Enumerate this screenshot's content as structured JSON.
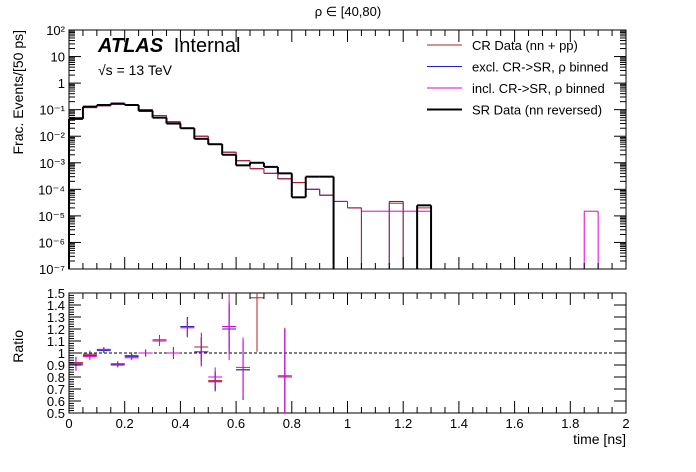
{
  "figure_title": "ρ ∈ [40,80)",
  "atlas": {
    "bold": "ATLAS",
    "label": "Internal",
    "energy": "√s = 13 TeV"
  },
  "colors": {
    "cr": "#b22222",
    "excl": "#1f1fd0",
    "incl": "#e000e0",
    "sr": "#000000"
  },
  "legend": [
    {
      "key": "cr",
      "label": "CR Data (nn + pp)"
    },
    {
      "key": "excl",
      "label": "excl. CR->SR, ρ binned"
    },
    {
      "key": "incl",
      "label": "incl. CR->SR, ρ binned"
    },
    {
      "key": "sr",
      "label": "SR Data (nn reversed)"
    }
  ],
  "chart_data": [
    {
      "type": "histogram",
      "panel": "main",
      "ylabel": "Frac. Events/[50 ps]",
      "yscale": "log",
      "ylim": [
        1e-07,
        100
      ],
      "xlim": [
        0,
        2
      ],
      "bin_width": 0.05,
      "y_tick_labels": [
        "10⁻⁷",
        "10⁻⁶",
        "10⁻⁵",
        "10⁻⁴",
        "10⁻³",
        "10⁻²",
        "10⁻¹",
        "1",
        "10",
        "10²"
      ],
      "series": [
        {
          "name": "CR Data (nn + pp)",
          "key": "cr",
          "values": [
            0.05,
            0.12,
            0.14,
            0.16,
            0.15,
            0.1,
            0.06,
            0.035,
            0.02,
            0.01,
            0.005,
            0.0025,
            0.0012,
            0.0006,
            0.0004,
            0.00025,
            0.00018,
            0.0001,
            6e-05,
            3.5e-05,
            2e-05,
            0,
            0,
            3e-05,
            0,
            2e-05
          ]
        },
        {
          "name": "excl. CR->SR, ρ binned",
          "key": "excl",
          "values": [
            0.05,
            0.12,
            0.14,
            0.16,
            0.15,
            0.1,
            0.06,
            0.035,
            0.02,
            0.01,
            0.005,
            0.0025,
            0.0012,
            0.0006,
            0.0004,
            0.00025,
            0.00018,
            0.0001,
            6e-05,
            3.5e-05,
            2e-05,
            0,
            0,
            3.5e-05,
            0,
            2.5e-05
          ]
        },
        {
          "name": "incl. CR->SR, ρ binned",
          "key": "incl",
          "values": [
            0.05,
            0.12,
            0.14,
            0.16,
            0.15,
            0.1,
            0.06,
            0.035,
            0.02,
            0.01,
            0.005,
            0.0025,
            0.0012,
            0.0006,
            0.0004,
            0.00025,
            0.00018,
            0.0001,
            6e-05,
            3.5e-05,
            2e-05,
            1.5e-05,
            1.5e-05,
            1.5e-05,
            1.5e-05,
            1.5e-05,
            0,
            0,
            0,
            0,
            0,
            0,
            0,
            0,
            0,
            0,
            0,
            1.5e-05,
            0,
            0
          ]
        },
        {
          "name": "SR Data (nn reversed)",
          "key": "sr",
          "values": [
            0.045,
            0.13,
            0.15,
            0.17,
            0.15,
            0.09,
            0.05,
            0.03,
            0.02,
            0.008,
            0.005,
            0.002,
            0.0008,
            0.001,
            0.0007,
            0.0004,
            5e-05,
            0.0003,
            0.0003,
            0,
            0,
            0,
            0,
            0,
            0,
            2.5e-05
          ]
        }
      ]
    },
    {
      "type": "scatter_errorbar",
      "panel": "ratio",
      "ylabel": "Ratio",
      "xlabel": "time [ns]",
      "xlim": [
        0,
        2
      ],
      "ylim": [
        0.5,
        1.5
      ],
      "reference_line": 1.0,
      "x_tick_labels": [
        "0",
        "0.2",
        "0.4",
        "0.6",
        "0.8",
        "1",
        "1.2",
        "1.4",
        "1.6",
        "1.8",
        "2"
      ],
      "y_tick_labels": [
        "0.5",
        "0.6",
        "0.7",
        "0.8",
        "0.9",
        "1",
        "1.1",
        "1.2",
        "1.3",
        "1.4",
        "1.5"
      ],
      "series": [
        {
          "name": "CR ratio",
          "key": "cr",
          "points": [
            {
              "x": 0.025,
              "y": 0.92,
              "err": 0.05
            },
            {
              "x": 0.075,
              "y": 0.99,
              "err": 0.03
            },
            {
              "x": 0.125,
              "y": 1.03,
              "err": 0.02
            },
            {
              "x": 0.175,
              "y": 0.91,
              "err": 0.02
            },
            {
              "x": 0.225,
              "y": 0.98,
              "err": 0.02
            },
            {
              "x": 0.275,
              "y": 1.0,
              "err": 0.03
            },
            {
              "x": 0.325,
              "y": 1.11,
              "err": 0.04
            },
            {
              "x": 0.375,
              "y": 1.0,
              "err": 0.05
            },
            {
              "x": 0.425,
              "y": 1.22,
              "err": 0.08
            },
            {
              "x": 0.475,
              "y": 1.05,
              "err": 0.12
            },
            {
              "x": 0.525,
              "y": 0.77,
              "err": 0.08
            },
            {
              "x": 0.575,
              "y": 1.22,
              "err": 0.2
            },
            {
              "x": 0.625,
              "y": 0.86,
              "err": 0.25
            },
            {
              "x": 0.675,
              "y": 1.46,
              "err": 0.45
            },
            {
              "x": 0.775,
              "y": 0.81,
              "err": 0.4
            }
          ]
        },
        {
          "name": "excl ratio",
          "key": "excl",
          "points": [
            {
              "x": 0.025,
              "y": 0.91,
              "err": 0.05
            },
            {
              "x": 0.075,
              "y": 0.98,
              "err": 0.03
            },
            {
              "x": 0.125,
              "y": 1.02,
              "err": 0.02
            },
            {
              "x": 0.175,
              "y": 0.9,
              "err": 0.02
            },
            {
              "x": 0.225,
              "y": 0.97,
              "err": 0.02
            },
            {
              "x": 0.275,
              "y": 1.0,
              "err": 0.03
            },
            {
              "x": 0.325,
              "y": 1.1,
              "err": 0.04
            },
            {
              "x": 0.375,
              "y": 1.0,
              "err": 0.05
            },
            {
              "x": 0.425,
              "y": 1.22,
              "err": 0.08
            },
            {
              "x": 0.475,
              "y": 1.01,
              "err": 0.12
            },
            {
              "x": 0.525,
              "y": 0.76,
              "err": 0.08
            },
            {
              "x": 0.575,
              "y": 1.2,
              "err": 0.2
            },
            {
              "x": 0.625,
              "y": 0.86,
              "err": 0.25
            },
            {
              "x": 0.775,
              "y": 0.8,
              "err": 0.4
            }
          ]
        },
        {
          "name": "incl ratio",
          "key": "incl",
          "points": [
            {
              "x": 0.025,
              "y": 0.9,
              "err": 0.05
            },
            {
              "x": 0.075,
              "y": 0.97,
              "err": 0.03
            },
            {
              "x": 0.125,
              "y": 1.03,
              "err": 0.02
            },
            {
              "x": 0.175,
              "y": 0.91,
              "err": 0.02
            },
            {
              "x": 0.225,
              "y": 0.96,
              "err": 0.02
            },
            {
              "x": 0.275,
              "y": 1.0,
              "err": 0.03
            },
            {
              "x": 0.325,
              "y": 1.1,
              "err": 0.04
            },
            {
              "x": 0.375,
              "y": 1.0,
              "err": 0.05
            },
            {
              "x": 0.425,
              "y": 1.21,
              "err": 0.08
            },
            {
              "x": 0.475,
              "y": 1.01,
              "err": 0.12
            },
            {
              "x": 0.525,
              "y": 0.8,
              "err": 0.08
            },
            {
              "x": 0.575,
              "y": 1.22,
              "err": 0.28
            },
            {
              "x": 0.625,
              "y": 0.88,
              "err": 0.25
            },
            {
              "x": 0.775,
              "y": 0.8,
              "err": 0.4
            }
          ]
        }
      ]
    }
  ]
}
